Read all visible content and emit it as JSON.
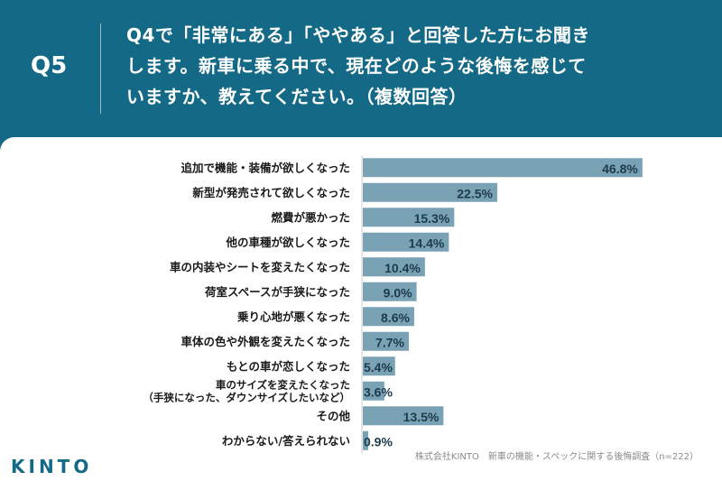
{
  "header": {
    "q_label": "Q5",
    "question_lines": [
      "Q4で「非常にある」「ややある」と回答した方にお聞き",
      "します。新車に乗る中で、現在どのような後悔を感じて",
      "いますか、教えてください。（複数回答）"
    ]
  },
  "chart_data": {
    "type": "bar",
    "orientation": "horizontal",
    "categories": [
      [
        "追加で機能・装備が欲しくなった"
      ],
      [
        "新型が発売されて欲しくなった"
      ],
      [
        "燃費が悪かった"
      ],
      [
        "他の車種が欲しくなった"
      ],
      [
        "車の内装やシートを変えたくなった"
      ],
      [
        "荷室スペースが手狭になった"
      ],
      [
        "乗り心地が悪くなった"
      ],
      [
        "車体の色や外観を変えたくなった"
      ],
      [
        "もとの車が恋しくなった"
      ],
      [
        "車のサイズを変えたくなった",
        "（手狭になった、ダウンサイズしたいなど）"
      ],
      [
        "その他"
      ],
      [
        "わからない/答えられない"
      ]
    ],
    "values": [
      46.8,
      22.5,
      15.3,
      14.4,
      10.4,
      9.0,
      8.6,
      7.7,
      5.4,
      3.6,
      13.5,
      0.9
    ],
    "value_labels": [
      "46.8%",
      "22.5%",
      "15.3%",
      "14.4%",
      "10.4%",
      "9.0%",
      "8.6%",
      "7.7%",
      "5.4%",
      "3.6%",
      "13.5%",
      "0.9%"
    ],
    "xlim": [
      0,
      58
    ],
    "bar_color": "#7aa2b5",
    "grid": false
  },
  "footer": {
    "logo": "KINTO",
    "source": "株式会社KINTO　新車の機能・スペックに関する後悔調査（n=222）"
  },
  "colors": {
    "background": "#146a86",
    "bar": "#7aa2b5",
    "text": "#1a1a1a"
  }
}
